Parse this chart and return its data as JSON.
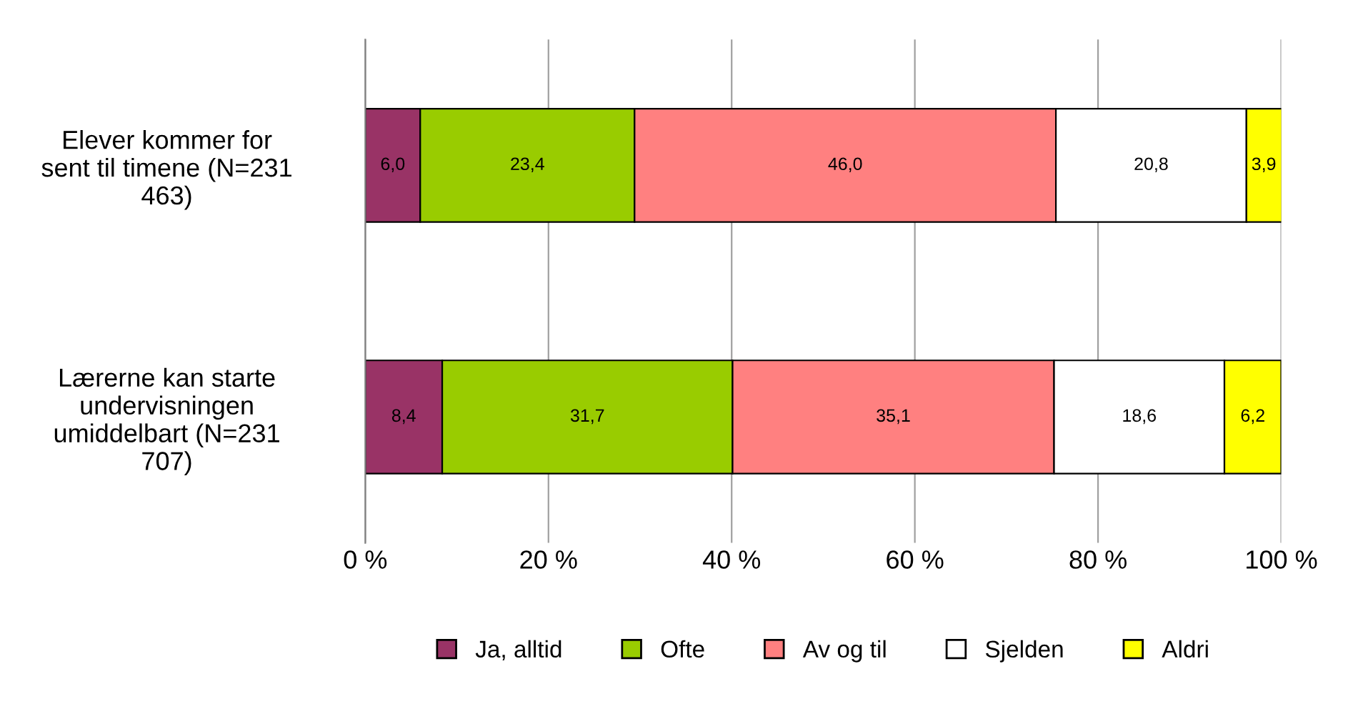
{
  "chart_data": {
    "type": "bar",
    "orientation": "horizontal",
    "stacked": true,
    "categories": [
      "Elever kommer for\nsent til timene (N=231\n463)",
      "Lærerne kan starte\nundervisningen\numiddelbart (N=231\n707)"
    ],
    "series": [
      {
        "name": "Ja, alltid",
        "color": "#993366",
        "values": [
          6.0,
          8.4
        ],
        "value_labels": [
          "6,0",
          "8,4"
        ]
      },
      {
        "name": "Ofte",
        "color": "#99cc00",
        "values": [
          23.4,
          31.7
        ],
        "value_labels": [
          "23,4",
          "31,7"
        ]
      },
      {
        "name": "Av og til",
        "color": "#ff8080",
        "values": [
          46.0,
          35.1
        ],
        "value_labels": [
          "46,0",
          "35,1"
        ]
      },
      {
        "name": "Sjelden",
        "color": "#ffffff",
        "values": [
          20.8,
          18.6
        ],
        "value_labels": [
          "20,8",
          "18,6"
        ]
      },
      {
        "name": "Aldri",
        "color": "#ffff00",
        "values": [
          3.9,
          6.2
        ],
        "value_labels": [
          "3,9",
          "6,2"
        ]
      }
    ],
    "xlim": [
      0,
      100
    ],
    "xticks": [
      {
        "value": 0,
        "label": "0 %"
      },
      {
        "value": 20,
        "label": "20 %"
      },
      {
        "value": 40,
        "label": "40 %"
      },
      {
        "value": 60,
        "label": "60 %"
      },
      {
        "value": 80,
        "label": "80 %"
      },
      {
        "value": 100,
        "label": "100 %"
      }
    ],
    "grid": "x",
    "legend": "bottom"
  }
}
